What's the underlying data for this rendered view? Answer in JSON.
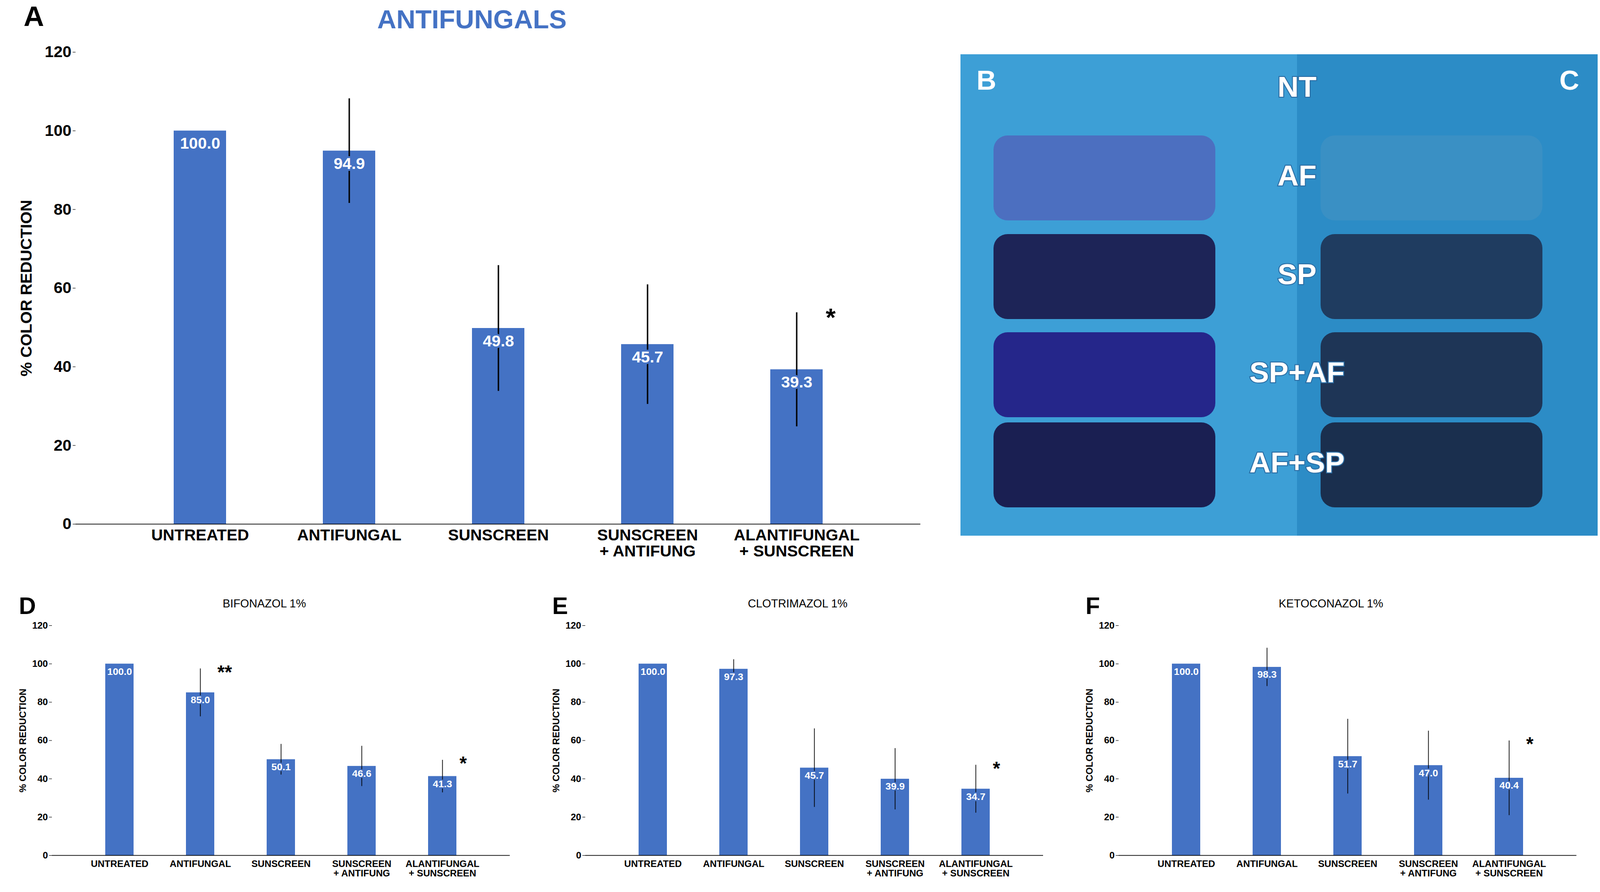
{
  "chart_data": [
    {
      "type": "bar",
      "panel": "A",
      "title": "ANTIFUNGALS",
      "y_label": "% COLOR REDUCTION",
      "categories": [
        "UNTREATED",
        "ANTIFUNGAL",
        "SUNSCREEN",
        "SUNSCREEN\n+ ANTIFUNG",
        "ALANTIFUNGAL\n+ SUNSCREEN"
      ],
      "values": [
        100,
        94.9,
        49.8,
        45.7,
        39.3
      ],
      "value_labels": [
        "100.0",
        "94.9",
        "49.8",
        "45.7",
        "39.3"
      ],
      "errors": [
        0,
        13.3,
        16,
        15.2,
        14.5
      ],
      "annotations": [
        {
          "category": "ALANTIFUNGAL\n+ SUNSCREEN",
          "text": "*"
        }
      ],
      "color": "#4472c4",
      "ylim": [
        0,
        120
      ],
      "yticks": [
        0,
        20,
        40,
        60,
        80,
        100,
        120
      ],
      "grid": false,
      "data_labels": true
    },
    {
      "type": "bar",
      "panel": "D",
      "title": "BIFONAZOL 1%",
      "y_label": "% COLOR REDUCTION",
      "categories": [
        "UNTREATED",
        "ANTIFUNGAL",
        "SUNSCREEN",
        "SUNSCREEN\n+ ANTIFUNG",
        "ALANTIFUNGAL\n+ SUNSCREEN"
      ],
      "values": [
        100,
        85,
        50.1,
        46.6,
        41.3
      ],
      "value_labels": [
        "100.0",
        "85.0",
        "50.1",
        "46.6",
        "41.3"
      ],
      "errors": [
        0,
        12.5,
        8,
        10.5,
        8.5
      ],
      "annotations": [
        {
          "category": "ANTIFUNGAL",
          "text": "**"
        },
        {
          "category": "ALANTIFUNGAL\n+ SUNSCREEN",
          "text": "*"
        }
      ],
      "color": "#4472c4",
      "ylim": [
        0,
        120
      ],
      "yticks": [
        0,
        20,
        40,
        60,
        80,
        100,
        120
      ],
      "grid": false,
      "data_labels": true
    },
    {
      "type": "bar",
      "panel": "E",
      "title": "CLOTRIMAZOL 1%",
      "y_label": "% COLOR REDUCTION",
      "categories": [
        "UNTREATED",
        "ANTIFUNGAL",
        "SUNSCREEN",
        "SUNSCREEN\n+ ANTIFUNG",
        "ALANTIFUNGAL\n+ SUNSCREEN"
      ],
      "values": [
        100,
        97.3,
        45.7,
        39.9,
        34.7
      ],
      "value_labels": [
        "100.0",
        "97.3",
        "45.7",
        "39.9",
        "34.7"
      ],
      "errors": [
        0,
        5,
        20.5,
        16,
        12.5
      ],
      "annotations": [
        {
          "category": "ALANTIFUNGAL\n+ SUNSCREEN",
          "text": "*"
        }
      ],
      "color": "#4472c4",
      "ylim": [
        0,
        120
      ],
      "yticks": [
        0,
        20,
        40,
        60,
        80,
        100,
        120
      ],
      "grid": false,
      "data_labels": true
    },
    {
      "type": "bar",
      "panel": "F",
      "title": "KETOCONAZOL 1%",
      "y_label": "% COLOR REDUCTION",
      "categories": [
        "UNTREATED",
        "ANTIFUNGAL",
        "SUNSCREEN",
        "SUNSCREEN\n+ ANTIFUNG",
        "ALANTIFUNGAL\n+ SUNSCREEN"
      ],
      "values": [
        100,
        98.3,
        51.7,
        47.0,
        40.4
      ],
      "value_labels": [
        "100.0",
        "98.3",
        "51.7",
        "47.0",
        "40.4"
      ],
      "errors": [
        0,
        10,
        19.5,
        18,
        19.5
      ],
      "annotations": [
        {
          "category": "ALANTIFUNGAL\n+ SUNSCREEN",
          "text": "*"
        }
      ],
      "color": "#4472c4",
      "ylim": [
        0,
        120
      ],
      "yticks": [
        0,
        20,
        40,
        60,
        80,
        100,
        120
      ],
      "grid": false,
      "data_labels": true
    }
  ],
  "photo": {
    "panels": [
      "B",
      "C"
    ],
    "rows": [
      "NT",
      "AF",
      "SP",
      "SP+AF",
      "AF+SP"
    ]
  }
}
